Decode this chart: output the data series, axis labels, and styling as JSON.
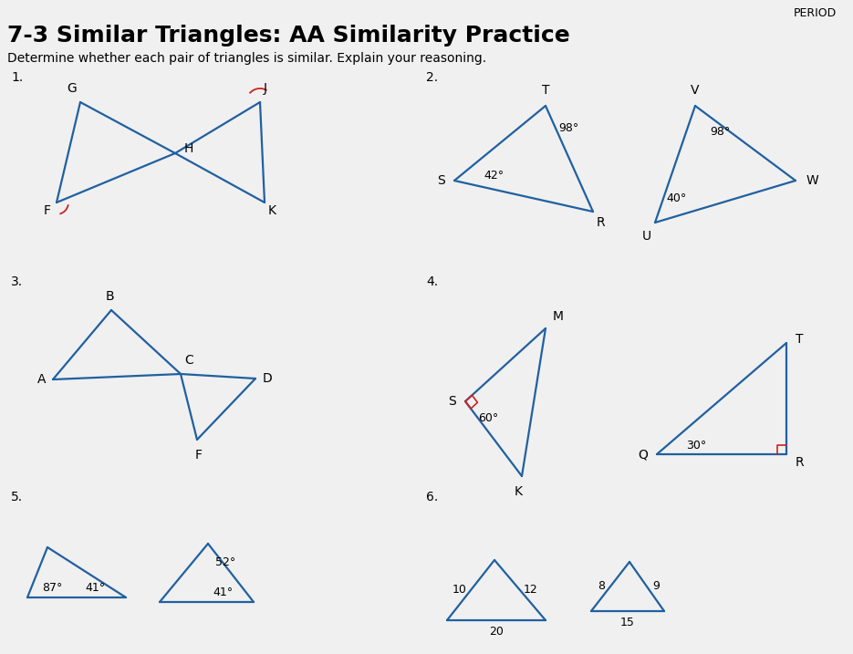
{
  "title": "7-3 Similar Triangles: AA Similarity Practice",
  "subtitle": "Determine whether each pair of triangles is similar. Explain your reasoning.",
  "period_label": "PERIOD",
  "background_color": "#f0f0f0",
  "line_color": "#2060a0",
  "text_color": "#000000",
  "angle_color": "#cc2222",
  "p1_label": "1.",
  "p2_label": "2.",
  "p3_label": "3.",
  "p4_label": "4.",
  "p5_label": "5.",
  "p6_label": "6."
}
